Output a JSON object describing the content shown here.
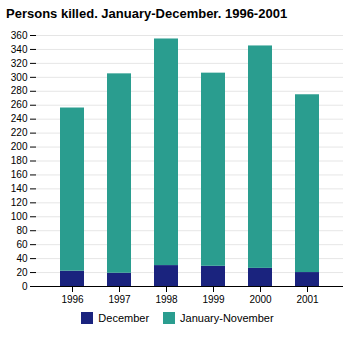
{
  "chart_data": {
    "type": "bar",
    "title": "Persons killed. January-December. 1996-2001",
    "categories": [
      "1996",
      "1997",
      "1998",
      "1999",
      "2000",
      "2001"
    ],
    "series": [
      {
        "name": "December",
        "color": "#1a237e",
        "values": [
          22,
          19,
          30,
          29,
          26,
          20
        ]
      },
      {
        "name": "January-November",
        "color": "#2a9d8f",
        "values": [
          234,
          286,
          325,
          277,
          319,
          255
        ]
      }
    ],
    "stacked": true,
    "ylim": [
      0,
      360
    ],
    "yticks": [
      0,
      20,
      40,
      60,
      80,
      100,
      120,
      140,
      160,
      180,
      200,
      220,
      240,
      260,
      280,
      300,
      320,
      340,
      360
    ],
    "grid": true,
    "legend": "bottom"
  }
}
